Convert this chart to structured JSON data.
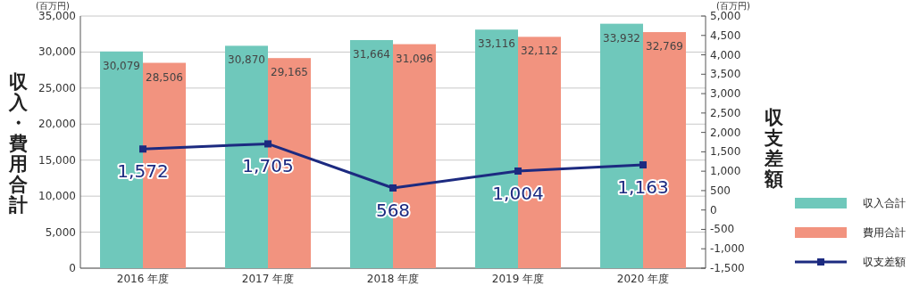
{
  "chart_data": {
    "type": "bar",
    "categories": [
      "2016 年度",
      "2017 年度",
      "2018 年度",
      "2019 年度",
      "2020 年度"
    ],
    "series": [
      {
        "name": "収入合計",
        "color": "#6fc8bb",
        "values": [
          30079,
          30870,
          31664,
          33116,
          33932
        ],
        "value_labels": [
          "30,079",
          "30,870",
          "31,664",
          "33,116",
          "33,932"
        ]
      },
      {
        "name": "費用合計",
        "color": "#f2937f",
        "values": [
          28506,
          29165,
          31096,
          32112,
          32769
        ],
        "value_labels": [
          "28,506",
          "29,165",
          "31,096",
          "32,112",
          "32,769"
        ]
      },
      {
        "name": "収支差額",
        "type": "line",
        "axis": "y2",
        "color": "#1c2a80",
        "values": [
          1572,
          1705,
          568,
          1004,
          1163
        ],
        "value_labels": [
          "1,572",
          "1,705",
          "568",
          "1,004",
          "1,163"
        ]
      }
    ],
    "ylabel": "収入・費用合計",
    "y2label": "収支差額",
    "ylim": [
      0,
      35000
    ],
    "yticks": [
      0,
      {
        "value": 5000,
        "label": "5,000"
      },
      {
        "value": 10000,
        "label": "10,000"
      },
      {
        "value": 15000,
        "label": "15,000"
      },
      {
        "value": 20000,
        "label": "20,000"
      },
      {
        "value": 25000,
        "label": "25,000"
      },
      {
        "value": 30000,
        "label": "30,000"
      },
      {
        "value": 35000,
        "label": "35,000"
      }
    ],
    "y2lim": [
      -1500,
      5000
    ],
    "y2ticks": [
      {
        "value": -1500,
        "label": "-1,500"
      },
      {
        "value": -1000,
        "label": "-1,000"
      },
      -500,
      0,
      500,
      {
        "value": 1000,
        "label": "1,000"
      },
      {
        "value": 1500,
        "label": "1,500"
      },
      {
        "value": 2000,
        "label": "2,000"
      },
      {
        "value": 2500,
        "label": "2,500"
      },
      {
        "value": 3000,
        "label": "3,000"
      },
      {
        "value": 3500,
        "label": "3,500"
      },
      {
        "value": 4000,
        "label": "4,000"
      },
      {
        "value": 4500,
        "label": "4,500"
      },
      {
        "value": 5000,
        "label": "5,000"
      }
    ],
    "grid": "y",
    "legend": "right",
    "marker": "square",
    "line_style": "solid",
    "annotations": [
      "(百万円)",
      "(百万円)"
    ]
  }
}
